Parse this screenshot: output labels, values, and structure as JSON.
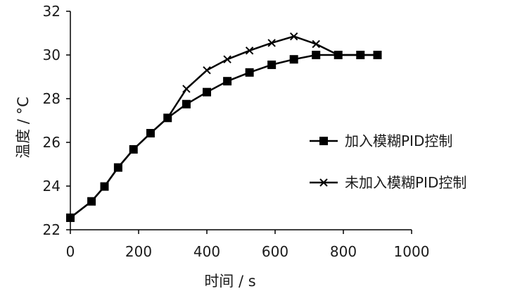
{
  "chart_data": {
    "type": "line",
    "xlabel": "时间 / s",
    "ylabel": "温度 / °C",
    "xlim": [
      0,
      1000
    ],
    "ylim": [
      22,
      32
    ],
    "x_ticks": [
      "0",
      "200",
      "400",
      "600",
      "800",
      "1000"
    ],
    "y_ticks": [
      "22",
      "24",
      "26",
      "28",
      "30",
      "32"
    ],
    "grid": false,
    "legend_position": "right",
    "series": [
      {
        "name": "加入模糊PID控制",
        "marker": "square",
        "x": [
          0,
          62,
          100,
          140,
          185,
          235,
          285,
          340,
          400,
          460,
          525,
          590,
          655,
          720,
          785,
          850,
          900
        ],
        "y": [
          22.55,
          23.3,
          23.98,
          24.85,
          25.68,
          26.42,
          27.12,
          27.75,
          28.3,
          28.8,
          29.2,
          29.55,
          29.8,
          30.0,
          30.0,
          30.0,
          30.0
        ]
      },
      {
        "name": "未加入模糊PID控制",
        "marker": "x",
        "x": [
          0,
          62,
          100,
          140,
          185,
          235,
          285,
          340,
          400,
          460,
          525,
          590,
          655,
          720,
          785,
          850,
          900
        ],
        "y": [
          22.55,
          23.3,
          23.98,
          24.85,
          25.68,
          26.42,
          27.12,
          28.45,
          29.3,
          29.8,
          30.2,
          30.55,
          30.85,
          30.5,
          30.0,
          30.0,
          30.0
        ]
      }
    ]
  }
}
